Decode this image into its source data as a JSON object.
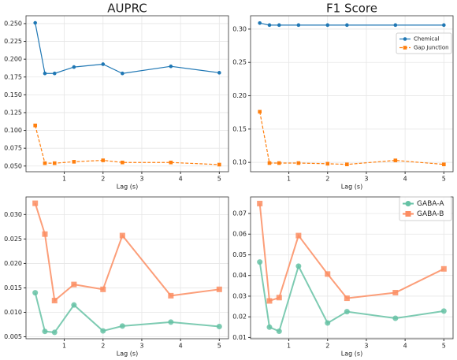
{
  "chart_data": [
    {
      "type": "line",
      "title": "AUPRC",
      "xlabel": "Lag (s)",
      "x": [
        0.25,
        0.5,
        0.75,
        1.25,
        2,
        2.5,
        3.75,
        5
      ],
      "series": [
        {
          "name": "Chemical",
          "color": "#1f77b4",
          "marker": "o",
          "linestyle": "-",
          "values": [
            0.251,
            0.18,
            0.18,
            0.189,
            0.193,
            0.18,
            0.19,
            0.181
          ]
        },
        {
          "name": "Gap Junction",
          "color": "#ff7f0e",
          "marker": "s",
          "linestyle": "--",
          "values": [
            0.107,
            0.054,
            0.054,
            0.056,
            0.058,
            0.055,
            0.055,
            0.052
          ]
        }
      ],
      "xlim": [
        0.0125,
        5.2375
      ],
      "xticks": [
        1,
        2,
        3,
        4,
        5
      ],
      "ylim": [
        0.042,
        0.261
      ],
      "yticks": [
        {
          "value": 0.05,
          "label": "0.050"
        },
        0.075,
        {
          "value": 0.1,
          "label": "0.100"
        },
        0.125,
        {
          "value": 0.15,
          "label": "0.150"
        },
        0.175,
        {
          "value": 0.2,
          "label": "0.200"
        },
        0.225,
        {
          "value": 0.25,
          "label": "0.250"
        }
      ],
      "grid": true
    },
    {
      "type": "line",
      "title": "F1 Score",
      "xlabel": "Lag (s)",
      "x": [
        0.25,
        0.5,
        0.75,
        1.25,
        2,
        2.5,
        3.75,
        5
      ],
      "series": [
        {
          "name": "Chemical",
          "color": "#1f77b4",
          "marker": "o",
          "linestyle": "-",
          "values": [
            0.309,
            0.306,
            0.306,
            0.306,
            0.306,
            0.306,
            0.306,
            0.306
          ]
        },
        {
          "name": "Gap Junction",
          "color": "#ff7f0e",
          "marker": "s",
          "linestyle": "--",
          "values": [
            0.176,
            0.099,
            0.099,
            0.099,
            0.098,
            0.097,
            0.103,
            0.097
          ]
        }
      ],
      "xlim": [
        0.0125,
        5.2375
      ],
      "xticks": [
        1,
        2,
        3,
        4,
        5
      ],
      "ylim": [
        0.086,
        0.32
      ],
      "yticks": [
        {
          "value": 0.1,
          "label": "0.10"
        },
        0.15,
        {
          "value": 0.2,
          "label": "0.20"
        },
        0.25,
        {
          "value": 0.3,
          "label": "0.30"
        }
      ],
      "grid": true,
      "legend": "upper right"
    },
    {
      "type": "line",
      "xlabel": "Lag (s)",
      "x": [
        0.25,
        0.5,
        0.75,
        1.25,
        2,
        2.5,
        3.75,
        5
      ],
      "series": [
        {
          "name": "GABA-A",
          "color": "#66c2a5",
          "marker": "o",
          "linestyle": "-",
          "values": [
            0.014,
            0.0061,
            0.0059,
            0.0115,
            0.0062,
            0.0072,
            0.008,
            0.0071
          ]
        },
        {
          "name": "GABA-B",
          "color": "#fc8d62",
          "marker": "s",
          "linestyle": "-",
          "values": [
            0.0323,
            0.026,
            0.0124,
            0.0157,
            0.0147,
            0.0257,
            0.0134,
            0.0147
          ]
        }
      ],
      "xlim": [
        0.0125,
        5.2375
      ],
      "xticks": [
        1,
        2,
        3,
        4,
        5
      ],
      "ylim": [
        0.0046,
        0.0336
      ],
      "yticks": [
        0.005,
        {
          "value": 0.01,
          "label": "0.010"
        },
        0.015,
        {
          "value": 0.02,
          "label": "0.020"
        },
        0.025,
        {
          "value": 0.03,
          "label": "0.030"
        }
      ],
      "grid": true
    },
    {
      "type": "line",
      "xlabel": "Lag (s)",
      "x": [
        0.25,
        0.5,
        0.75,
        1.25,
        2,
        2.5,
        3.75,
        5
      ],
      "series": [
        {
          "name": "GABA-A",
          "color": "#66c2a5",
          "marker": "o",
          "linestyle": "-",
          "values": [
            0.0465,
            0.015,
            0.013,
            0.0445,
            0.017,
            0.0225,
            0.0193,
            0.0228
          ]
        },
        {
          "name": "GABA-B",
          "color": "#fc8d62",
          "marker": "s",
          "linestyle": "-",
          "values": [
            0.0748,
            0.0277,
            0.0293,
            0.0593,
            0.0407,
            0.029,
            0.0317,
            0.0432
          ]
        }
      ],
      "xlim": [
        0.0125,
        5.2375
      ],
      "xticks": [
        1,
        2,
        3,
        4,
        5
      ],
      "ylim": [
        0.0094,
        0.078
      ],
      "yticks": [
        0.01,
        0.02,
        0.03,
        0.04,
        0.05,
        0.06,
        0.07
      ],
      "grid": true,
      "legend": "upper right"
    }
  ]
}
